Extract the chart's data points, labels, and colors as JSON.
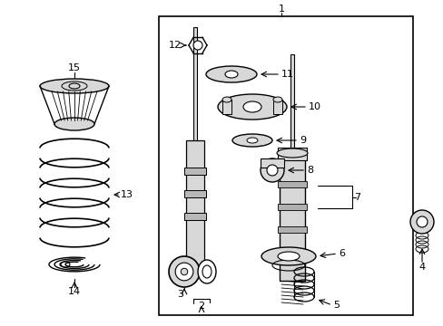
{
  "bg_color": "#ffffff",
  "line_color": "#000000",
  "gray_fill": "#d8d8d8",
  "fig_width": 4.89,
  "fig_height": 3.6,
  "dpi": 100
}
